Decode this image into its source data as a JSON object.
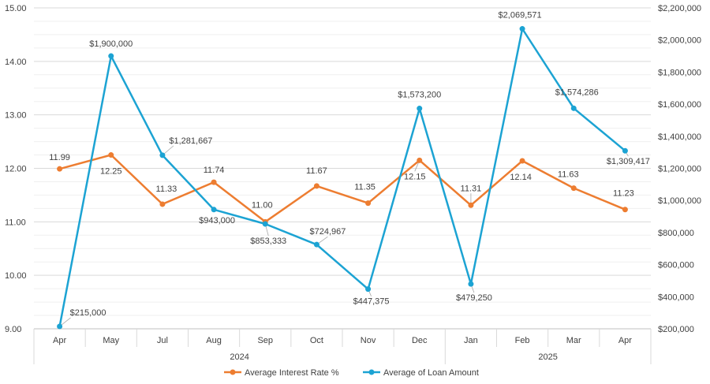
{
  "chart_data": {
    "type": "line",
    "categories": [
      "Apr",
      "May",
      "Jul",
      "Aug",
      "Sep",
      "Oct",
      "Nov",
      "Dec",
      "Jan",
      "Feb",
      "Mar",
      "Apr"
    ],
    "year_groups": [
      {
        "label": "2024",
        "start": 0,
        "end": 7
      },
      {
        "label": "2025",
        "start": 8,
        "end": 11
      }
    ],
    "series": [
      {
        "name": "Average Interest Rate %",
        "axis": "left",
        "color": "#ED7D31",
        "values": [
          11.99,
          12.25,
          11.33,
          11.74,
          11.0,
          11.67,
          11.35,
          12.15,
          11.31,
          12.14,
          11.63,
          11.23
        ],
        "labels": [
          "11.99",
          "12.25",
          "11.33",
          "11.74",
          "11.00",
          "11.67",
          "11.35",
          "12.15",
          "11.31",
          "12.14",
          "11.63",
          "11.23"
        ]
      },
      {
        "name": "Average of Loan Amount",
        "axis": "right",
        "color": "#1CA3D3",
        "values": [
          215000,
          1900000,
          1281667,
          943000,
          853333,
          724967,
          447375,
          1573200,
          479250,
          2069571,
          1574286,
          1309417
        ],
        "labels": [
          "$215,000",
          "$1,900,000",
          "$1,281,667",
          "$943,000",
          "$853,333",
          "$724,967",
          "$447,375",
          "$1,573,200",
          "$479,250",
          "$2,069,571",
          "$1,574,286",
          "$1,309,417"
        ]
      }
    ],
    "y_left": {
      "ylim": [
        9.0,
        15.0
      ],
      "ticks": [
        "9.00",
        "10.00",
        "11.00",
        "12.00",
        "13.00",
        "14.00",
        "15.00"
      ]
    },
    "y_right": {
      "ylim": [
        200000,
        2200000
      ],
      "ticks": [
        "$200,000",
        "$400,000",
        "$600,000",
        "$800,000",
        "$1,000,000",
        "$1,200,000",
        "$1,400,000",
        "$1,600,000",
        "$1,800,000",
        "$2,000,000",
        "$2,200,000"
      ]
    },
    "grid": true,
    "legend_position": "bottom"
  }
}
